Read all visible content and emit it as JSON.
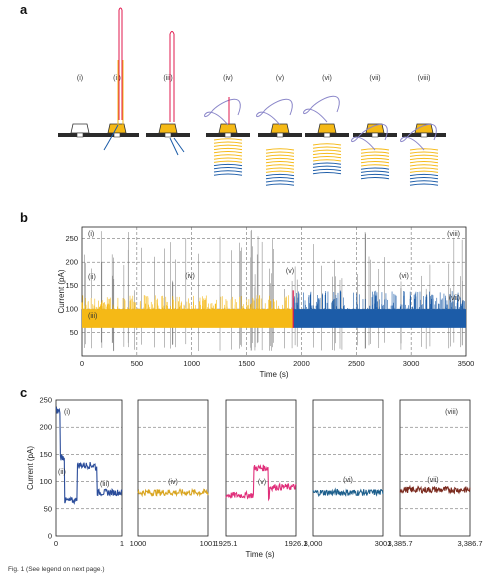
{
  "panel_a": {
    "label": "a",
    "steps": [
      "(i)",
      "(ii)",
      "(iii)",
      "(iv)",
      "(v)",
      "(vi)",
      "(vii)",
      "(viii)"
    ]
  },
  "panel_b": {
    "label": "b",
    "ylabel": "Current (pA)",
    "xlabel": "Time (s)",
    "yticks": [
      "50",
      "100",
      "150",
      "200",
      "250"
    ],
    "xticks": [
      "0",
      "500",
      "1000",
      "1500",
      "2000",
      "2500",
      "3000",
      "3500"
    ],
    "annotations": [
      "(i)",
      "(ii)",
      "(iii)",
      "(iv)",
      "(v)",
      "(vi)",
      "(vii)",
      "(viii)"
    ]
  },
  "panel_c": {
    "label": "c",
    "ylabel": "Current (pA)",
    "xlabel": "Time (s)",
    "yticks": [
      "0",
      "50",
      "100",
      "150",
      "200",
      "250"
    ],
    "subplots": [
      {
        "xticks": [
          "0",
          "1"
        ],
        "annotations": [
          "(i)",
          "(ii)",
          "(iii)"
        ]
      },
      {
        "xticks": [
          "1000",
          "1001"
        ],
        "annotations": [
          "(iv)"
        ]
      },
      {
        "xticks": [
          "1925.1",
          "1926.1"
        ],
        "annotations": [
          "(v)"
        ]
      },
      {
        "xticks": [
          "3,000",
          "3001"
        ],
        "annotations": [
          "(vi)"
        ]
      },
      {
        "xticks": [
          "3,385.7",
          "3,386.7"
        ],
        "annotations": [
          "(vii)",
          "(viii)"
        ]
      }
    ]
  },
  "caption": "Fig. 1 (See legend on next page.)",
  "colors": {
    "yellow": "#f5b916",
    "blue": "#1c5ca8",
    "red": "#e2184e",
    "pink": "#e02f7a",
    "darkblue": "#2a4c9a",
    "teal": "#1d5f8c",
    "brown": "#7a2a1e",
    "navy": "#1e2b5a",
    "grey": "#444444"
  },
  "chart_data": [
    {
      "type": "line",
      "ylabel": "Current (pA)",
      "xlabel": "Time (s)",
      "xlim": [
        0,
        3500
      ],
      "ylim": [
        0,
        275
      ],
      "series": [
        {
          "x": [
            0,
            1925
          ],
          "y": [
            85,
            85
          ]
        },
        {
          "x": [
            1925,
            3500
          ],
          "y": [
            85,
            85
          ]
        }
      ]
    },
    {
      "type": "line",
      "ylabel": "Current (pA)",
      "xlabel": "Time (s)",
      "ylim": [
        0,
        250
      ],
      "series": [
        {
          "x": [
            0,
            0.05,
            0.06,
            0.12,
            0.13,
            0.3,
            0.32,
            0.6,
            0.62,
            1
          ],
          "y": [
            230,
            230,
            145,
            145,
            65,
            70,
            130,
            125,
            80,
            80
          ]
        },
        {
          "x": [
            1000,
            1001
          ],
          "y": [
            80,
            75
          ]
        },
        {
          "x": [
            1925.1,
            1925.5,
            1925.55,
            1925.7,
            1925.72,
            1926.1
          ],
          "y": [
            75,
            125,
            125,
            70,
            90,
            90
          ]
        },
        {
          "x": [
            3000,
            3001
          ],
          "y": [
            80,
            80
          ]
        },
        {
          "x": [
            3385.7,
            3386.7
          ],
          "y": [
            85,
            85
          ]
        }
      ]
    }
  ]
}
